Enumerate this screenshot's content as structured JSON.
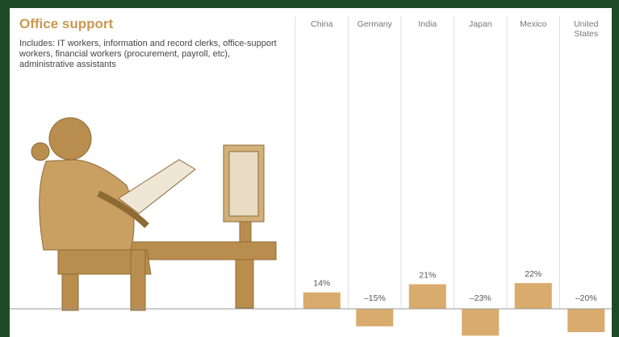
{
  "chart_data": {
    "type": "bar",
    "title": "Office support",
    "subtitle": "Includes: IT workers, information and record clerks, office-support workers, financial workers (procurement, payroll, etc), administrative assistants",
    "categories": [
      "China",
      "Germany",
      "India",
      "Japan",
      "Mexico",
      "United States"
    ],
    "values": [
      14,
      -15,
      21,
      -23,
      22,
      -20
    ],
    "value_labels": [
      "14%",
      "–15%",
      "21%",
      "–23%",
      "22%",
      "–20%"
    ],
    "color": "#d9ab6c"
  }
}
